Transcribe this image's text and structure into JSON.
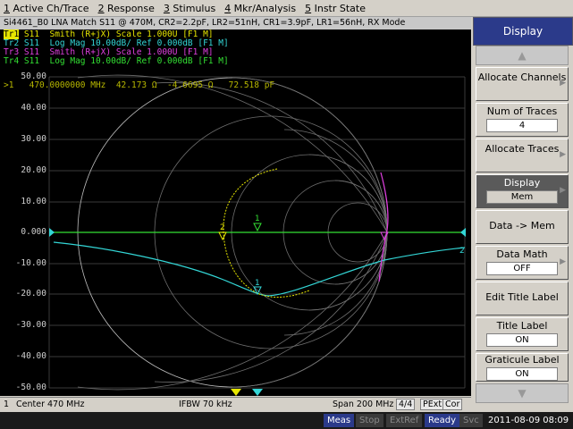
{
  "menu": [
    {
      "key": "1",
      "label": " Active Ch/Trace"
    },
    {
      "key": "2",
      "label": " Response"
    },
    {
      "key": "3",
      "label": " Stimulus"
    },
    {
      "key": "4",
      "label": " Mkr/Analysis"
    },
    {
      "key": "5",
      "label": " Instr State"
    }
  ],
  "channel_title": "Si4461_B0 LNA Match S11 @ 470M, CR2=2.2pF, LR2=51nH, CR1=3.9pF, LR1=56nH, RX Mode",
  "traces": [
    {
      "tag": "Tr1",
      "text": " S11  Smith (R+jX) Scale 1.000U [F1 M]",
      "color": "#e6e600"
    },
    {
      "tag": "Tr2",
      "text": " S11  Log Mag 10.00dB/ Ref 0.000dB [F1 M]",
      "color": "#33d6d6"
    },
    {
      "tag": "Tr3",
      "text": " S11  Smith (R+jX) Scale 1.000U [F1 M]",
      "color": "#e040e0"
    },
    {
      "tag": "Tr4",
      "text": " S11  Log Mag 10.00dB/ Ref 0.000dB [F1 M]",
      "color": "#33e033"
    }
  ],
  "marker_readout": ">1   470.0000000 MHz  42.173 Ω  -4.6695 Ω   72.518 pF",
  "y_axis": [
    "50.00",
    "40.00",
    "30.00",
    "20.00",
    "10.00",
    "0.000",
    "-10.00",
    "-20.00",
    "-30.00",
    "-40.00",
    "-50.00"
  ],
  "status": {
    "channel": "1",
    "start": "Center 470 MHz",
    "ifbw": "IFBW 70 kHz",
    "span": "Span 200 MHz",
    "trace_count": "4/4",
    "pext": "PExt",
    "cor": "Cor"
  },
  "bottom": {
    "meas": "Meas",
    "stop": "Stop",
    "extref": "ExtRef",
    "ready": "Ready",
    "svc": "Svc",
    "datetime": "2011-08-09 08:09"
  },
  "softkeys": {
    "title": "Display",
    "allocate_channels": "Allocate Channels",
    "num_traces_label": "Num of Traces",
    "num_traces_value": "4",
    "allocate_traces": "Allocate Traces",
    "display_label": "Display",
    "display_value": "Mem",
    "data_mem": "Data -> Mem",
    "data_math_label": "Data Math",
    "data_math_value": "OFF",
    "edit_title": "Edit Title Label",
    "title_label": "Title Label",
    "title_label_value": "ON",
    "graticule_label": "Graticule Label",
    "graticule_label_value": "ON"
  },
  "markers": {
    "m1": "1",
    "m2": "2"
  },
  "colors": {
    "tr1": "#e6e600",
    "tr2": "#33d6d6",
    "tr3": "#e040e0",
    "tr4": "#33e033",
    "softkey_title": "#2b3a8a"
  }
}
